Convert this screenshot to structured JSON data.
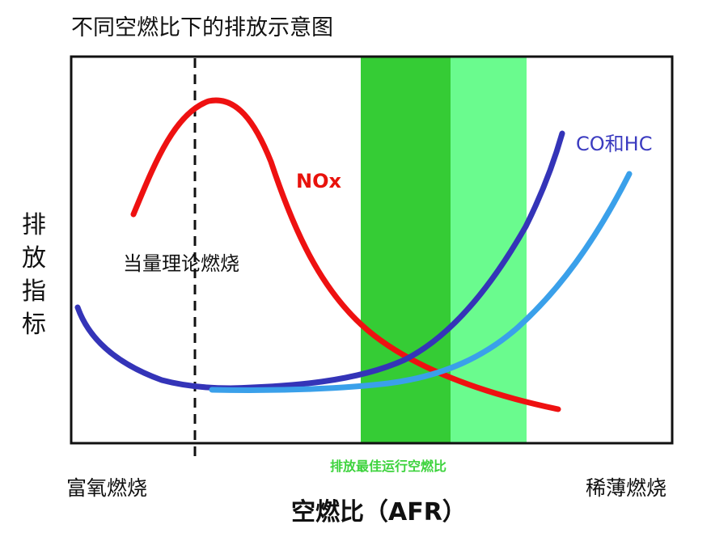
{
  "title": "不同空燃比下的排放示意图",
  "y_axis_label": "排放指标",
  "x_axis_label": "空燃比（AFR）",
  "stoichiometric_label": "当量理论燃烧",
  "nox_label": "NOx",
  "co_hc_label": "CO和HC",
  "optimal_zone_label": "排放最佳运行空燃比",
  "rich_label": "富氧燃烧",
  "lean_label": "稀薄燃烧",
  "colors": {
    "nox": "#ee1111",
    "co_hc": "#3434b8",
    "hc_light": "#3aa0ea",
    "optimal_dark": "#35cc35",
    "optimal_light": "#6afb8e",
    "stoich_line": "#111111"
  }
}
